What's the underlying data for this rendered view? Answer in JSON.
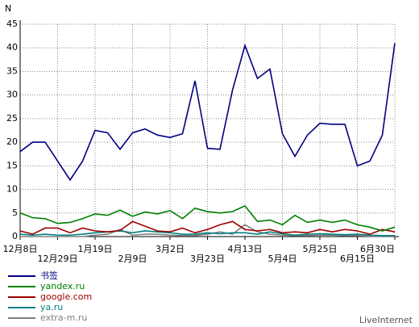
{
  "chart_data": {
    "type": "line",
    "y_label": "N",
    "watermark": "LiveInternet",
    "categories": [
      "12月8日",
      null,
      null,
      "12月29日",
      null,
      null,
      "1月19日",
      null,
      null,
      "2月9日",
      null,
      null,
      "3月2日",
      null,
      null,
      "3月23日",
      null,
      null,
      "4月13日",
      null,
      null,
      "5月4日",
      null,
      null,
      "5月25日",
      null,
      null,
      "6月15日",
      null,
      null,
      "6月30日"
    ],
    "ylim": [
      0,
      45
    ],
    "yticks": [
      0,
      5,
      10,
      15,
      20,
      25,
      30,
      35,
      40,
      45
    ],
    "grid": true,
    "series": [
      {
        "name": "书签",
        "color": "#000080",
        "values": [
          18,
          20,
          20,
          16,
          12,
          16,
          22.5,
          22,
          18.5,
          22,
          22.8,
          21.5,
          21,
          21.8,
          33,
          18.7,
          18.5,
          31,
          40.5,
          33.5,
          35.5,
          21.8,
          17,
          21.5,
          24,
          23.8,
          23.8,
          15,
          16,
          21.5,
          41
        ]
      },
      {
        "name": "yandex.ru",
        "color": "#008000",
        "values": [
          5,
          4,
          3.8,
          2.8,
          3,
          3.8,
          4.8,
          4.5,
          5.6,
          4.3,
          5.2,
          4.8,
          5.5,
          3.8,
          6,
          5.3,
          5,
          5.3,
          6.5,
          3.2,
          3.5,
          2.5,
          4.5,
          3,
          3.5,
          3,
          3.5,
          2.5,
          2,
          1.2,
          2
        ]
      },
      {
        "name": "google.com",
        "color": "#a00000",
        "values": [
          1.2,
          0.5,
          1.8,
          1.8,
          0.8,
          1.8,
          1.2,
          1,
          1.3,
          3.2,
          2.2,
          1.2,
          1,
          1.8,
          0.8,
          1.5,
          2.5,
          3.2,
          1.5,
          1.2,
          1.5,
          0.8,
          1,
          0.8,
          1.5,
          1,
          1.5,
          1.2,
          0.5,
          1.5,
          1
        ]
      },
      {
        "name": "ya.ru",
        "color": "#008080",
        "values": [
          0.5,
          0.3,
          0.5,
          0.3,
          0.3,
          0.5,
          0.8,
          1,
          1.2,
          0.8,
          1.2,
          1,
          0.8,
          0.5,
          0.5,
          0.8,
          0.6,
          0.8,
          0.8,
          0.5,
          1,
          0.6,
          0.3,
          0.5,
          0.6,
          0.5,
          0.4,
          0.5,
          0.3,
          0.2,
          0.2
        ]
      },
      {
        "name": "extra-m.ru",
        "color": "#808080",
        "values": [
          0,
          0,
          0,
          0,
          0,
          0,
          0.3,
          0.5,
          1.5,
          0.3,
          0.5,
          0.5,
          0.3,
          0.2,
          0.2,
          0.5,
          1,
          0.5,
          2.5,
          1,
          0.5,
          0.3,
          0.2,
          0.2,
          0.3,
          0.3,
          0.2,
          0.2,
          0.1,
          0.1,
          0.1
        ]
      }
    ]
  }
}
